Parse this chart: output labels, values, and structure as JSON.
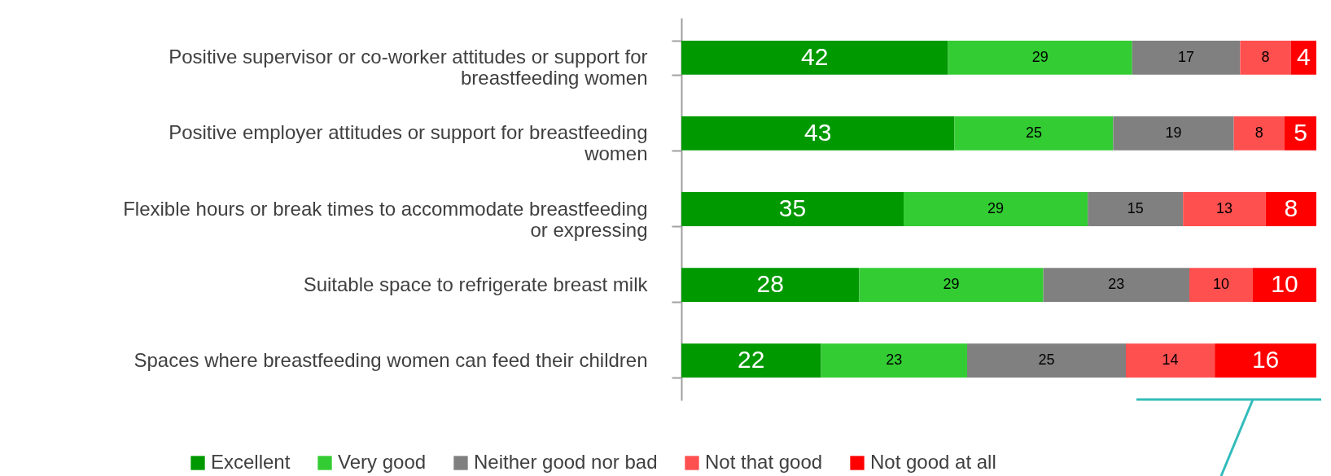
{
  "chart_data": {
    "type": "bar",
    "orientation": "horizontal",
    "stacked": true,
    "data_labels": true,
    "legend": "bottom",
    "tick_labels": "y",
    "grid": false,
    "xlim": [
      0,
      100
    ],
    "categories": [
      "Positive supervisor or co-worker attitudes or support for breastfeeding women",
      "Positive employer attitudes or support for breastfeeding women",
      "Flexible hours or break times to accommodate breastfeeding or expressing",
      "Suitable space to refrigerate breast milk",
      "Spaces where breastfeeding women can feed their children"
    ],
    "series": [
      {
        "name": "Excellent",
        "color": "#009900",
        "values": [
          42,
          43,
          35,
          28,
          22
        ]
      },
      {
        "name": "Very good",
        "color": "#33cc33",
        "values": [
          29,
          25,
          29,
          29,
          23
        ]
      },
      {
        "name": "Neither good nor bad",
        "color": "#808080",
        "values": [
          17,
          19,
          15,
          23,
          25
        ]
      },
      {
        "name": "Not that good",
        "color": "#ff5050",
        "values": [
          8,
          8,
          13,
          10,
          14
        ]
      },
      {
        "name": "Not good at all",
        "color": "#ff0000",
        "values": [
          4,
          5,
          8,
          10,
          16
        ]
      }
    ]
  }
}
